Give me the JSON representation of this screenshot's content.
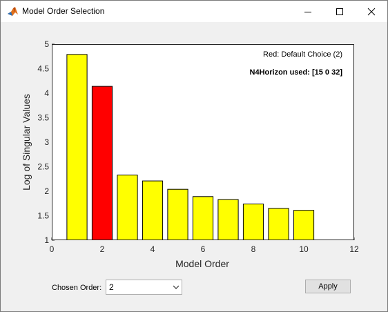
{
  "window": {
    "title": "Model Order Selection",
    "icon": "matlab-icon"
  },
  "controls": {
    "chosen_order_label": "Chosen Order:",
    "chosen_order_value": "2",
    "apply_label": "Apply"
  },
  "annotations": {
    "default_choice": "Red: Default Choice (2)",
    "horizon": "N4Horizon used: [15 0 32]"
  },
  "colors": {
    "bar": "#ffff00",
    "selected_bar": "#ff0000"
  },
  "chart_data": {
    "type": "bar",
    "x": [
      1,
      2,
      3,
      4,
      5,
      6,
      7,
      8,
      9,
      10
    ],
    "values": [
      4.79,
      4.14,
      2.33,
      2.21,
      2.04,
      1.89,
      1.83,
      1.74,
      1.65,
      1.61
    ],
    "highlight_x": 2,
    "title": "",
    "xlabel": "Model Order",
    "ylabel": "Log of Singular Values",
    "xlim": [
      0,
      12
    ],
    "ylim": [
      1,
      5
    ],
    "xticks": [
      0,
      2,
      4,
      6,
      8,
      10,
      12
    ],
    "yticks": [
      1,
      1.5,
      2,
      2.5,
      3,
      3.5,
      4,
      4.5,
      5
    ],
    "yticklabels": [
      "1",
      "1.5",
      "2",
      "2.5",
      "3",
      "3.5",
      "4",
      "4.5",
      "5"
    ],
    "grid": false
  }
}
